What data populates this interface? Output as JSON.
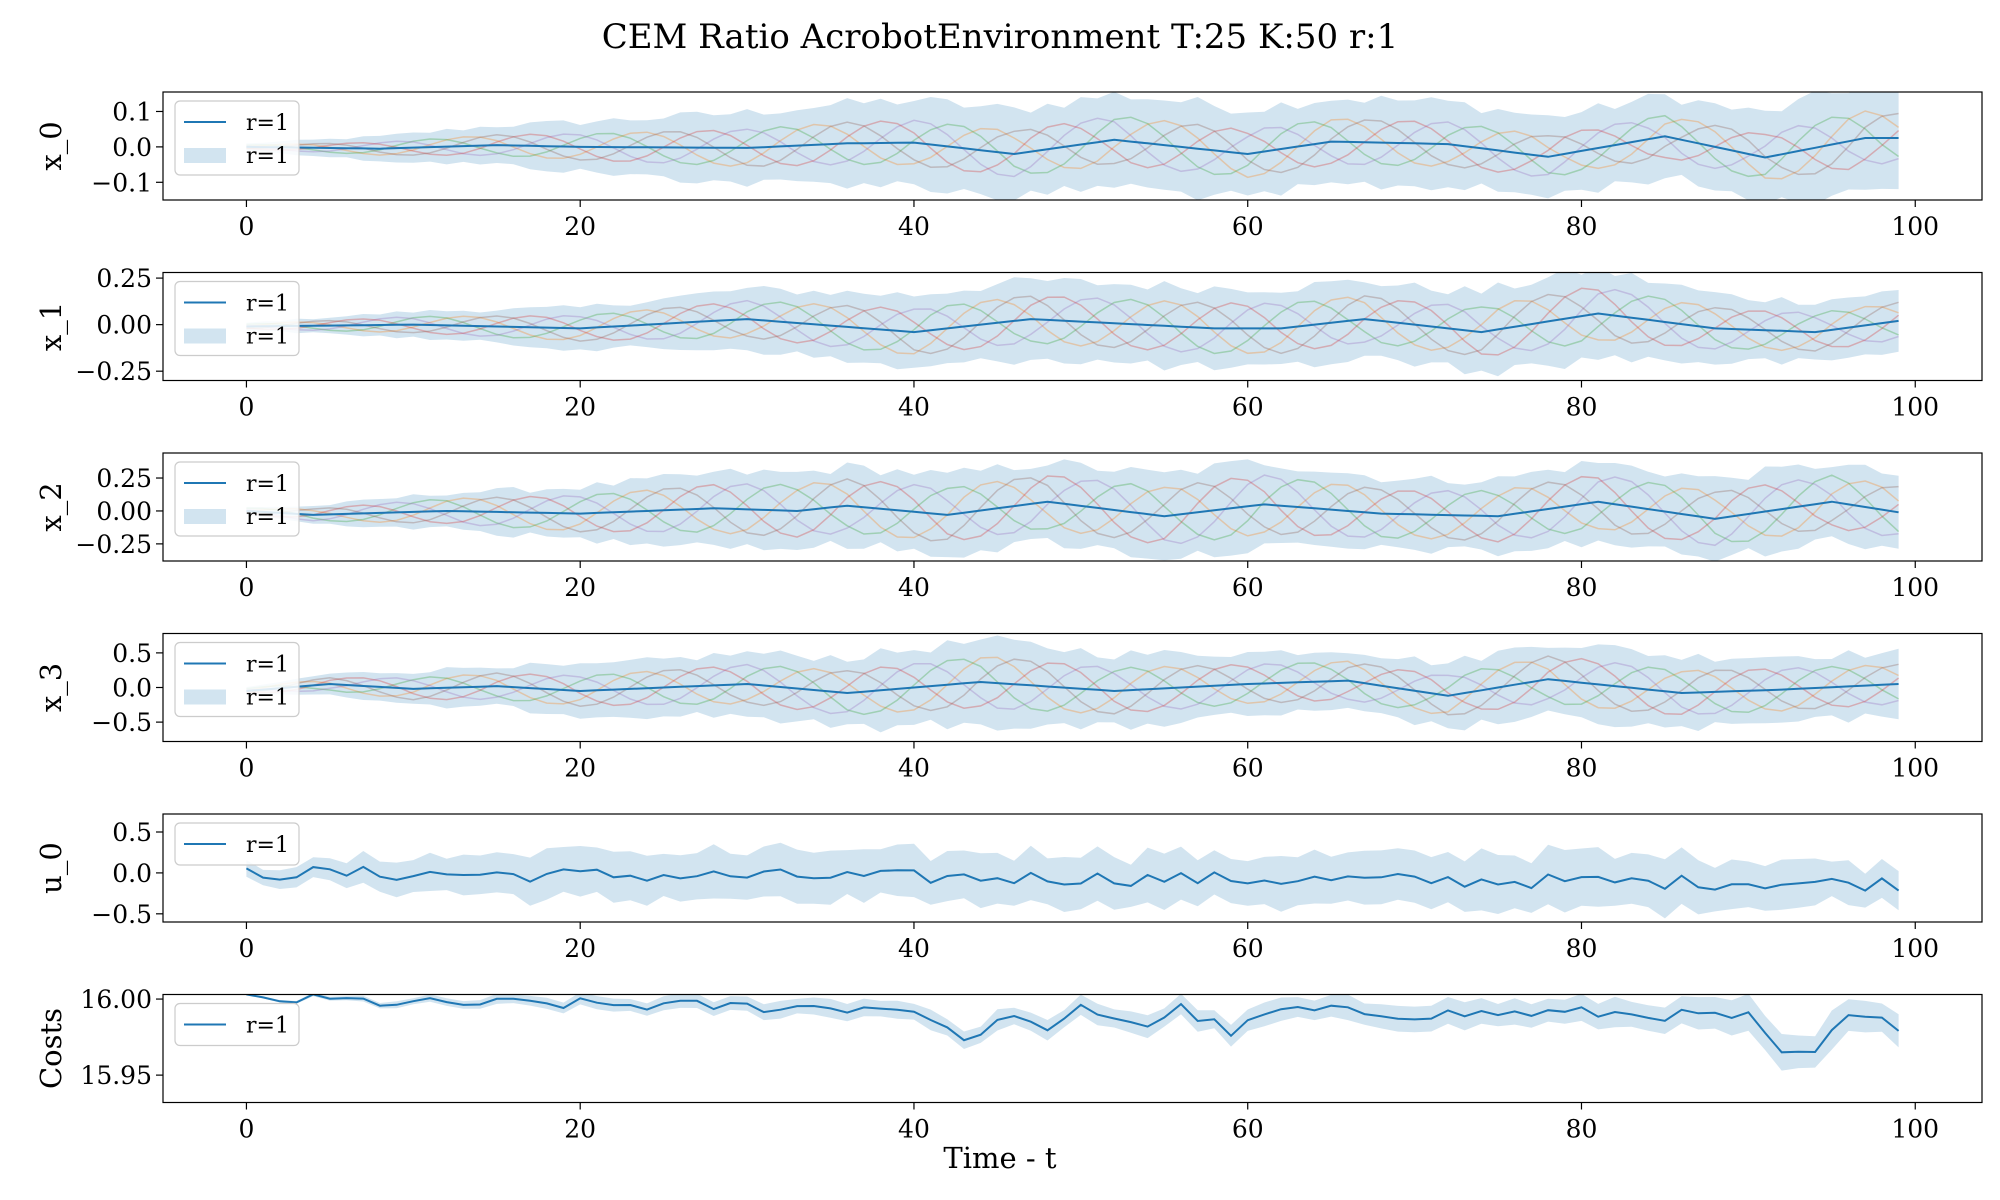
{
  "chart_data": {
    "type": "line",
    "title": "CEM Ratio AcrobotEnvironment T:25 K:50 r:1",
    "xlabel": "Time - t",
    "xlim": [
      -5,
      104
    ],
    "xticks": [
      0,
      20,
      40,
      60,
      80,
      100
    ],
    "colors": {
      "mean": "#1f77b4",
      "band": "#1f77b4",
      "samples": [
        "#ff7f0e",
        "#2ca02c",
        "#9467bd",
        "#d62728",
        "#8c564b"
      ]
    },
    "subplots": [
      {
        "ylabel": "x_0",
        "ylim": [
          -0.15,
          0.155
        ],
        "yticks": [
          0.1,
          0.0,
          -0.1
        ],
        "ytick_labels": [
          "0.1",
          "0.0",
          "−0.1"
        ],
        "legend": [
          "r=1",
          "r=1"
        ],
        "mean_knots": [
          [
            0,
            0.0
          ],
          [
            8,
            -0.005
          ],
          [
            15,
            0.005
          ],
          [
            20,
            0.0
          ],
          [
            30,
            -0.003
          ],
          [
            36,
            0.01
          ],
          [
            40,
            0.012
          ],
          [
            46,
            -0.02
          ],
          [
            52,
            0.02
          ],
          [
            60,
            -0.02
          ],
          [
            65,
            0.015
          ],
          [
            72,
            0.008
          ],
          [
            78,
            -0.028
          ],
          [
            85,
            0.03
          ],
          [
            91,
            -0.03
          ],
          [
            97,
            0.025
          ],
          [
            99,
            0.025
          ]
        ],
        "band_knots": [
          [
            0,
            0.01
          ],
          [
            10,
            0.04
          ],
          [
            20,
            0.07
          ],
          [
            30,
            0.1
          ],
          [
            40,
            0.12
          ],
          [
            55,
            0.13
          ],
          [
            70,
            0.12
          ],
          [
            80,
            0.11
          ],
          [
            90,
            0.12
          ],
          [
            96,
            0.15
          ],
          [
            99,
            0.13
          ]
        ],
        "sample_amplitude": 0.08,
        "sample_period": 10.5
      },
      {
        "ylabel": "x_1",
        "ylim": [
          -0.3,
          0.28
        ],
        "yticks": [
          0.25,
          0.0,
          -0.25
        ],
        "ytick_labels": [
          "0.25",
          "0.00",
          "−0.25"
        ],
        "legend": [
          "r=1",
          "r=1"
        ],
        "mean_knots": [
          [
            0,
            -0.01
          ],
          [
            10,
            0.0
          ],
          [
            20,
            -0.02
          ],
          [
            30,
            0.03
          ],
          [
            40,
            -0.04
          ],
          [
            47,
            0.03
          ],
          [
            58,
            -0.02
          ],
          [
            62,
            -0.02
          ],
          [
            67,
            0.03
          ],
          [
            74,
            -0.04
          ],
          [
            81,
            0.06
          ],
          [
            88,
            -0.02
          ],
          [
            94,
            -0.04
          ],
          [
            99,
            0.02
          ]
        ],
        "band_knots": [
          [
            0,
            0.02
          ],
          [
            10,
            0.07
          ],
          [
            20,
            0.11
          ],
          [
            30,
            0.16
          ],
          [
            40,
            0.2
          ],
          [
            50,
            0.21
          ],
          [
            60,
            0.22
          ],
          [
            70,
            0.2
          ],
          [
            80,
            0.24
          ],
          [
            90,
            0.17
          ],
          [
            99,
            0.16
          ]
        ],
        "sample_amplitude": 0.15,
        "sample_period": 10.5
      },
      {
        "ylabel": "x_2",
        "ylim": [
          -0.38,
          0.44
        ],
        "yticks": [
          0.25,
          0.0,
          -0.25
        ],
        "ytick_labels": [
          "0.25",
          "0.00",
          "−0.25"
        ],
        "legend": [
          "r=1",
          "r=1"
        ],
        "mean_knots": [
          [
            0,
            0.0
          ],
          [
            4,
            -0.03
          ],
          [
            12,
            0.0
          ],
          [
            20,
            -0.02
          ],
          [
            28,
            0.02
          ],
          [
            33,
            0.0
          ],
          [
            36,
            0.04
          ],
          [
            42,
            -0.03
          ],
          [
            48,
            0.07
          ],
          [
            55,
            -0.04
          ],
          [
            61,
            0.05
          ],
          [
            68,
            -0.02
          ],
          [
            75,
            -0.04
          ],
          [
            81,
            0.07
          ],
          [
            88,
            -0.06
          ],
          [
            95,
            0.07
          ],
          [
            99,
            -0.01
          ]
        ],
        "band_knots": [
          [
            0,
            0.03
          ],
          [
            10,
            0.12
          ],
          [
            20,
            0.2
          ],
          [
            30,
            0.28
          ],
          [
            40,
            0.3
          ],
          [
            50,
            0.3
          ],
          [
            60,
            0.33
          ],
          [
            70,
            0.26
          ],
          [
            80,
            0.3
          ],
          [
            90,
            0.3
          ],
          [
            99,
            0.28
          ]
        ],
        "sample_amplitude": 0.23,
        "sample_period": 10.5
      },
      {
        "ylabel": "x_3",
        "ylim": [
          -0.78,
          0.78
        ],
        "yticks": [
          0.5,
          0.0,
          -0.5
        ],
        "ytick_labels": [
          "0.5",
          "0.0",
          "−0.5"
        ],
        "legend": [
          "r=1",
          "r=1"
        ],
        "mean_knots": [
          [
            0,
            -0.05
          ],
          [
            5,
            0.05
          ],
          [
            10,
            -0.02
          ],
          [
            15,
            0.02
          ],
          [
            20,
            -0.05
          ],
          [
            30,
            0.05
          ],
          [
            36,
            -0.08
          ],
          [
            44,
            0.08
          ],
          [
            52,
            -0.05
          ],
          [
            60,
            0.05
          ],
          [
            66,
            0.1
          ],
          [
            72,
            -0.12
          ],
          [
            78,
            0.12
          ],
          [
            86,
            -0.08
          ],
          [
            92,
            -0.03
          ],
          [
            99,
            0.05
          ]
        ],
        "band_knots": [
          [
            0,
            0.05
          ],
          [
            10,
            0.25
          ],
          [
            20,
            0.35
          ],
          [
            30,
            0.45
          ],
          [
            45,
            0.6
          ],
          [
            60,
            0.45
          ],
          [
            70,
            0.45
          ],
          [
            80,
            0.55
          ],
          [
            90,
            0.5
          ],
          [
            99,
            0.45
          ]
        ],
        "sample_amplitude": 0.38,
        "sample_period": 10.5
      },
      {
        "ylabel": "u_0",
        "ylim": [
          -0.6,
          0.72
        ],
        "yticks": [
          0.5,
          0.0,
          -0.5
        ],
        "ytick_labels": [
          "0.5",
          "0.0",
          "−0.5"
        ],
        "legend": [
          "r=1"
        ],
        "mean_knots": [
          [
            0,
            0.0
          ],
          [
            99,
            -0.13
          ]
        ],
        "band_knots": [
          [
            0,
            0.1
          ],
          [
            20,
            0.3
          ],
          [
            40,
            0.3
          ],
          [
            60,
            0.3
          ],
          [
            80,
            0.35
          ],
          [
            99,
            0.22
          ]
        ],
        "noise_amplitude": 0.09,
        "sample_amplitude": 0,
        "sample_period": 10.5
      },
      {
        "ylabel": "Costs",
        "ylim": [
          15.932,
          16.003
        ],
        "yticks": [
          16.0,
          15.95
        ],
        "ytick_labels": [
          "16.00",
          "15.95"
        ],
        "legend": [
          "r=1"
        ],
        "mean_knots": [
          [
            0,
            16.0
          ],
          [
            6,
            15.999
          ],
          [
            10,
            15.997
          ],
          [
            18,
            15.997
          ],
          [
            30,
            15.995
          ],
          [
            40,
            15.994
          ],
          [
            42,
            15.978
          ],
          [
            44,
            15.975
          ],
          [
            46,
            15.992
          ],
          [
            48,
            15.976
          ],
          [
            50,
            15.994
          ],
          [
            54,
            15.983
          ],
          [
            56,
            15.994
          ],
          [
            59,
            15.978
          ],
          [
            62,
            15.993
          ],
          [
            70,
            15.99
          ],
          [
            80,
            15.991
          ],
          [
            90,
            15.988
          ],
          [
            92,
            15.962
          ],
          [
            94,
            15.965
          ],
          [
            96,
            15.988
          ],
          [
            99,
            15.983
          ]
        ],
        "band_knots": [
          [
            0,
            0.0005
          ],
          [
            20,
            0.004
          ],
          [
            40,
            0.006
          ],
          [
            60,
            0.007
          ],
          [
            80,
            0.009
          ],
          [
            95,
            0.012
          ],
          [
            99,
            0.01
          ]
        ],
        "noise_amplitude": 0.004,
        "sample_amplitude": 0,
        "sample_period": 10.5
      }
    ]
  }
}
